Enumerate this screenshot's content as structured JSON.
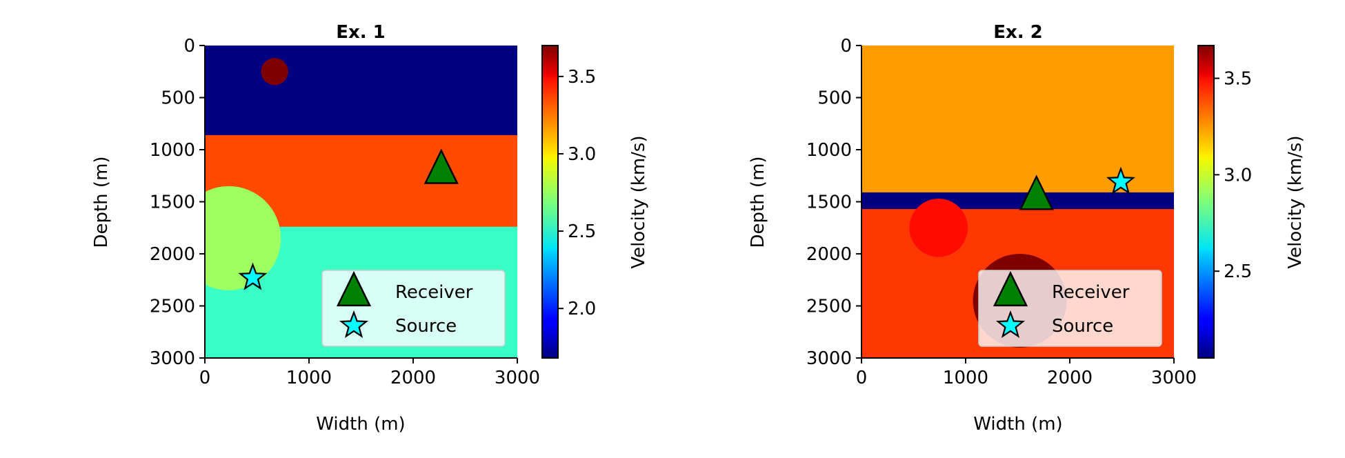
{
  "chart_data": [
    {
      "type": "heatmap",
      "title": "Ex. 1",
      "xlabel": "Width (m)",
      "ylabel": "Depth (m)",
      "xlim": [
        0,
        3000
      ],
      "ylim": [
        3000,
        0
      ],
      "xticks": [
        "0",
        "1000",
        "2000",
        "3000"
      ],
      "yticks": [
        "0",
        "500",
        "1000",
        "1500",
        "2000",
        "2500",
        "3000"
      ],
      "colorbar": {
        "label": "Velocity (km/s)",
        "range": [
          1.68,
          3.7
        ],
        "ticks": [
          "2.0",
          "2.5",
          "3.0",
          "3.5"
        ],
        "colormap": "jet"
      },
      "layers": [
        {
          "top": 0,
          "bottom": 860,
          "velocity": 1.68
        },
        {
          "top": 860,
          "bottom": 1740,
          "velocity": 3.3
        },
        {
          "top": 1740,
          "bottom": 3000,
          "velocity": 2.55
        }
      ],
      "inclusions": [
        {
          "x": 670,
          "y": 250,
          "radius": 130,
          "velocity": 3.7
        },
        {
          "x": 230,
          "y": 1850,
          "radius": 500,
          "velocity": 2.75
        }
      ],
      "markers": [
        {
          "label": "Receiver",
          "shape": "triangle",
          "x": 2270,
          "y": 1190,
          "color": "#008000"
        },
        {
          "label": "Source",
          "shape": "star",
          "x": 460,
          "y": 2230,
          "color": "#00ffff"
        }
      ],
      "legend": {
        "placement": "lower-right",
        "entries": [
          "Receiver",
          "Source"
        ]
      }
    },
    {
      "type": "heatmap",
      "title": "Ex. 2",
      "xlabel": "Width (m)",
      "ylabel": "Depth (m)",
      "xlim": [
        0,
        3000
      ],
      "ylim": [
        3000,
        0
      ],
      "xticks": [
        "0",
        "1000",
        "2000",
        "3000"
      ],
      "yticks": [
        "0",
        "500",
        "1000",
        "1500",
        "2000",
        "2500",
        "3000"
      ],
      "colorbar": {
        "label": "Velocity (km/s)",
        "range": [
          2.05,
          3.67
        ],
        "ticks": [
          "2.5",
          "3.0",
          "3.5"
        ],
        "colormap": "jet"
      },
      "layers": [
        {
          "top": 0,
          "bottom": 1410,
          "velocity": 3.22
        },
        {
          "top": 1410,
          "bottom": 1570,
          "velocity": 2.05
        },
        {
          "top": 1570,
          "bottom": 3000,
          "velocity": 3.38
        }
      ],
      "inclusions": [
        {
          "x": 740,
          "y": 1750,
          "radius": 280,
          "velocity": 3.45
        },
        {
          "x": 1520,
          "y": 2450,
          "radius": 450,
          "velocity": 3.67
        }
      ],
      "markers": [
        {
          "label": "Receiver",
          "shape": "triangle",
          "x": 1680,
          "y": 1440,
          "color": "#008000"
        },
        {
          "label": "Source",
          "shape": "star",
          "x": 2490,
          "y": 1310,
          "color": "#00ffff"
        }
      ],
      "legend": {
        "placement": "lower-right",
        "entries": [
          "Receiver",
          "Source"
        ]
      }
    }
  ]
}
